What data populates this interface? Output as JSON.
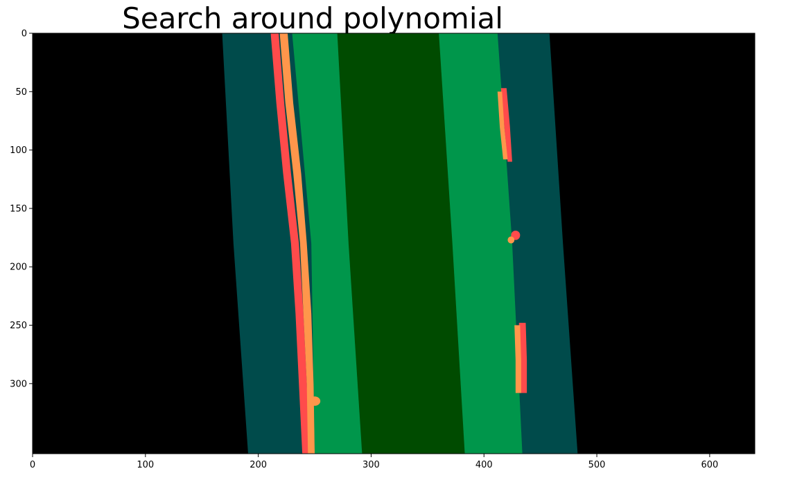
{
  "chart_data": {
    "type": "image",
    "title": "Search around polynomial",
    "xlabel": "",
    "ylabel": "",
    "xlim": [
      0,
      640
    ],
    "ylim": [
      360,
      0
    ],
    "xticks": [
      0,
      100,
      200,
      300,
      400,
      500,
      600
    ],
    "yticks": [
      0,
      50,
      100,
      150,
      200,
      250,
      300
    ],
    "background_color": "#000000",
    "colors": {
      "search_margin": "#004b4b",
      "lane_fill_outer": "#00964b",
      "lane_fill_center": "#004b00",
      "left_lane_pixels": "#ff4b4b",
      "right_lane_pixels": "#ff964b"
    },
    "regions": [
      {
        "name": "left-search-margin",
        "color": "#004b4b",
        "left_edge": [
          [
            0,
            168
          ],
          [
            180,
            178
          ],
          [
            360,
            191
          ]
        ],
        "right_edge": [
          [
            0,
            259
          ],
          [
            180,
            271
          ],
          [
            360,
            292
          ]
        ]
      },
      {
        "name": "right-search-margin",
        "color": "#004b4b",
        "left_edge": [
          [
            0,
            366
          ],
          [
            180,
            374
          ],
          [
            360,
            383
          ]
        ],
        "right_edge": [
          [
            0,
            458
          ],
          [
            180,
            470
          ],
          [
            360,
            483
          ]
        ]
      },
      {
        "name": "lane-fill-outer",
        "color": "#00964b",
        "left_edge": [
          [
            0,
            230
          ],
          [
            180,
            247
          ],
          [
            360,
            250
          ]
        ],
        "right_edge": [
          [
            0,
            412
          ],
          [
            180,
            425
          ],
          [
            360,
            434
          ]
        ]
      },
      {
        "name": "lane-fill-center",
        "color": "#004b00",
        "left_edge": [
          [
            0,
            270
          ],
          [
            180,
            280
          ],
          [
            360,
            292
          ]
        ],
        "right_edge": [
          [
            0,
            360
          ],
          [
            180,
            372
          ],
          [
            360,
            383
          ]
        ]
      }
    ],
    "lane_pixel_series": [
      {
        "name": "left-lane-red",
        "color": "#ff4b4b",
        "segments": [
          {
            "left_edge": [
              [
                0,
                211
              ],
              [
                60,
                216
              ],
              [
                120,
                222
              ],
              [
                180,
                229
              ],
              [
                240,
                233
              ],
              [
                300,
                236
              ],
              [
                360,
                239
              ]
            ],
            "right_edge": [
              [
                0,
                218
              ],
              [
                60,
                223
              ],
              [
                120,
                229
              ],
              [
                180,
                236
              ],
              [
                240,
                240
              ],
              [
                300,
                243
              ],
              [
                360,
                246
              ]
            ]
          }
        ]
      },
      {
        "name": "left-lane-orange",
        "color": "#ff964b",
        "segments": [
          {
            "left_edge": [
              [
                0,
                219
              ],
              [
                60,
                224
              ],
              [
                120,
                231
              ],
              [
                180,
                237
              ],
              [
                240,
                240
              ],
              [
                300,
                243
              ],
              [
                360,
                244
              ]
            ],
            "right_edge": [
              [
                0,
                226
              ],
              [
                60,
                231
              ],
              [
                120,
                238
              ],
              [
                180,
                243
              ],
              [
                240,
                247
              ],
              [
                300,
                249
              ],
              [
                360,
                250
              ]
            ]
          }
        ],
        "blobs": [
          {
            "x": 250,
            "y": 315,
            "rx": 5,
            "ry": 4
          }
        ]
      },
      {
        "name": "right-lane-red",
        "color": "#ff4b4b",
        "segments": [
          {
            "left_edge": [
              [
                47,
                415
              ],
              [
                80,
                418
              ],
              [
                110,
                421
              ]
            ],
            "right_edge": [
              [
                47,
                420
              ],
              [
                80,
                423
              ],
              [
                110,
                425
              ]
            ]
          },
          {
            "left_edge": [
              [
                248,
                431
              ],
              [
                280,
                432
              ],
              [
                308,
                432
              ]
            ],
            "right_edge": [
              [
                248,
                437
              ],
              [
                280,
                438
              ],
              [
                308,
                438
              ]
            ]
          }
        ],
        "blobs": [
          {
            "x": 428,
            "y": 173,
            "rx": 4,
            "ry": 4
          }
        ]
      },
      {
        "name": "right-lane-orange",
        "color": "#ff964b",
        "segments": [
          {
            "left_edge": [
              [
                50,
                412
              ],
              [
                80,
                414
              ],
              [
                108,
                417
              ]
            ],
            "right_edge": [
              [
                50,
                416
              ],
              [
                80,
                418
              ],
              [
                108,
                421
              ]
            ]
          },
          {
            "left_edge": [
              [
                250,
                427
              ],
              [
                280,
                428
              ],
              [
                308,
                428
              ]
            ],
            "right_edge": [
              [
                250,
                432
              ],
              [
                280,
                433
              ],
              [
                308,
                433
              ]
            ]
          }
        ],
        "blobs": [
          {
            "x": 424,
            "y": 177,
            "rx": 3,
            "ry": 3
          }
        ]
      }
    ]
  }
}
